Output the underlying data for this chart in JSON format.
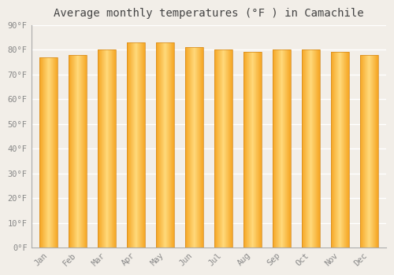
{
  "months": [
    "Jan",
    "Feb",
    "Mar",
    "Apr",
    "May",
    "Jun",
    "Jul",
    "Aug",
    "Sep",
    "Oct",
    "Nov",
    "Dec"
  ],
  "values": [
    77,
    78,
    80,
    83,
    83,
    81,
    80,
    79,
    80,
    80,
    79,
    78
  ],
  "bar_color_center": "#FFD97A",
  "bar_color_edge": "#F5A623",
  "bar_outline_color": "#D4881A",
  "background_color": "#F2EEE8",
  "grid_color": "#FFFFFF",
  "title": "Average monthly temperatures (°F ) in Camachile",
  "title_fontsize": 10,
  "tick_fontsize": 7.5,
  "ylim": [
    0,
    90
  ],
  "yticks": [
    0,
    10,
    20,
    30,
    40,
    50,
    60,
    70,
    80,
    90
  ],
  "ytick_labels": [
    "0°F",
    "10°F",
    "20°F",
    "30°F",
    "40°F",
    "50°F",
    "60°F",
    "70°F",
    "80°F",
    "90°F"
  ]
}
